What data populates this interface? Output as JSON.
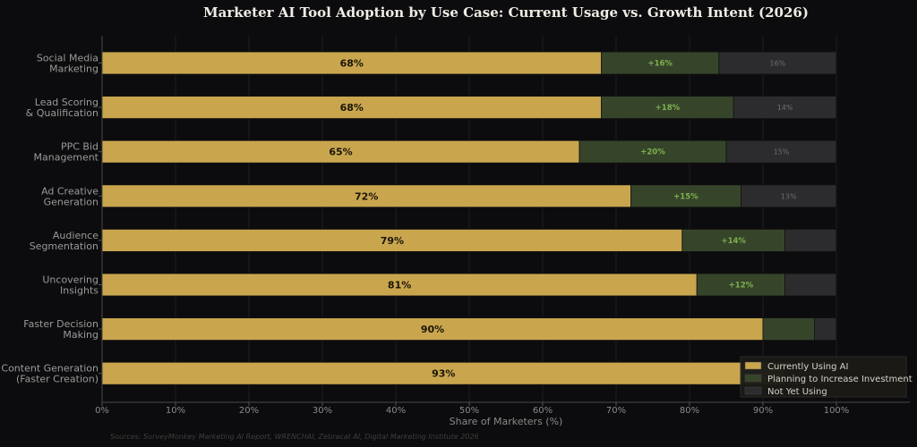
{
  "chart_data": {
    "type": "bar",
    "orientation": "horizontal-stacked",
    "title": "Marketer AI Tool Adoption by Use Case: Current Usage vs. Growth Intent (2026)",
    "xlabel": "Share of Marketers (%)",
    "xlim": [
      0,
      100
    ],
    "x_ticks": [
      "0%",
      "10%",
      "20%",
      "30%",
      "40%",
      "50%",
      "60%",
      "70%",
      "80%",
      "90%",
      "100%"
    ],
    "categories": [
      [
        "Social Media",
        "Marketing"
      ],
      [
        "Lead Scoring",
        "& Qualification"
      ],
      [
        "PPC Bid",
        "Management"
      ],
      [
        "Ad Creative",
        "Generation"
      ],
      [
        "Audience",
        "Segmentation"
      ],
      [
        "Uncovering",
        "Insights"
      ],
      [
        "Faster Decision",
        "Making"
      ],
      [
        "Content Generation",
        "(Faster Creation)"
      ]
    ],
    "series": [
      {
        "name": "Currently Using AI",
        "color": "#c9a64e",
        "values": [
          68,
          68,
          65,
          72,
          79,
          81,
          90,
          93
        ],
        "labels": [
          "68%",
          "68%",
          "65%",
          "72%",
          "79%",
          "81%",
          "90%",
          "93%"
        ]
      },
      {
        "name": "Planning to Increase Investment",
        "color": "#36452a",
        "values": [
          16,
          18,
          20,
          15,
          14,
          12,
          7,
          7
        ],
        "labels": [
          "+16%",
          "+18%",
          "+20%",
          "+15%",
          "+14%",
          "+12%",
          "",
          ""
        ]
      },
      {
        "name": "Not Yet Using",
        "color": "#2c2c2e",
        "values": [
          16,
          14,
          15,
          13,
          7,
          7,
          3,
          0
        ],
        "labels": [
          "16%",
          "14%",
          "15%",
          "13%",
          "",
          "",
          "",
          ""
        ]
      }
    ],
    "legend": "bottom-right",
    "grid": true,
    "source": "Sources: SurveyMonkey Marketing AI Report, WRENCHAI, Zebracat AI, Digital Marketing Institute 2026"
  }
}
